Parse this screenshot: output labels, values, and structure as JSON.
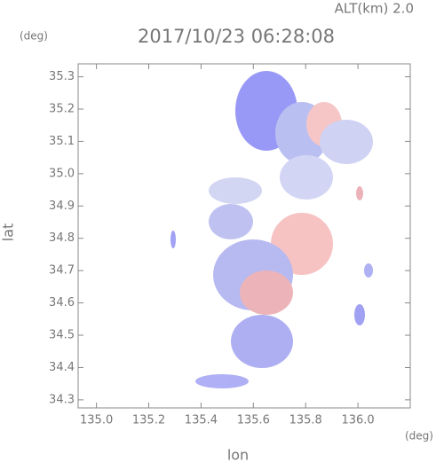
{
  "chart_data": {
    "type": "map",
    "title": "2017/10/23 06:28:08",
    "annotation": "ALT(km) 2.0",
    "x_label": "lon",
    "x_unit": "(deg)",
    "y_label": "lat",
    "y_unit": "(deg)",
    "xlim": [
      134.93,
      136.2
    ],
    "xticks": [
      {
        "value": 135.0,
        "label": "135.0"
      },
      135.2,
      135.4,
      135.6,
      135.8,
      {
        "value": 136.0,
        "label": "136.0"
      }
    ],
    "ylim": [
      34.275,
      35.34
    ],
    "yticks": [
      34.3,
      34.4,
      34.5,
      34.6,
      34.7,
      34.8,
      34.9,
      {
        "value": 35.0,
        "label": "35.0"
      },
      35.1,
      35.2,
      35.3
    ]
  }
}
